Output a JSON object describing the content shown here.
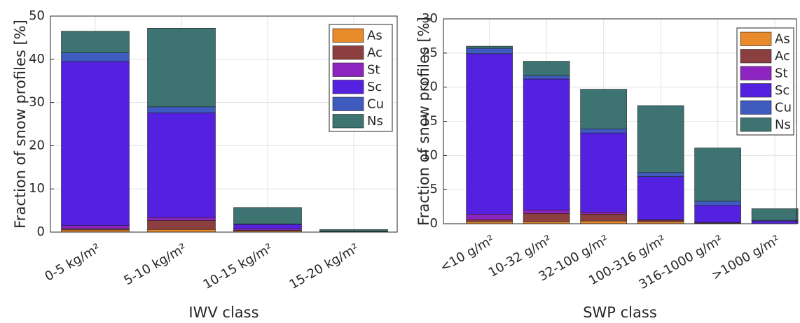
{
  "chart_data": [
    {
      "type": "stacked-bar",
      "x_label": "IWV class",
      "y_label": "Fraction of snow profiles [%]",
      "categories": [
        "0-5 kg/m²",
        "5-10 kg/m²",
        "10-15 kg/m²",
        "15-20 kg/m²"
      ],
      "series": [
        {
          "name": "As",
          "color": "#e8892a",
          "values": [
            0.5,
            0.6,
            0.3,
            0.1
          ]
        },
        {
          "name": "Ac",
          "color": "#8b3f3f",
          "values": [
            0.3,
            2.1,
            0.1,
            0
          ]
        },
        {
          "name": "St",
          "color": "#8e24c0",
          "values": [
            0.7,
            0.7,
            0.4,
            0
          ]
        },
        {
          "name": "Sc",
          "color": "#5521e0",
          "values": [
            38,
            24.2,
            1.0,
            0.1
          ]
        },
        {
          "name": "Cu",
          "color": "#3f5bbf",
          "values": [
            2,
            1.4,
            0.1,
            0
          ]
        },
        {
          "name": "Ns",
          "color": "#3d7370",
          "values": [
            5,
            18.2,
            3.8,
            0.4
          ]
        }
      ],
      "ylim": [
        0,
        50
      ],
      "yticks": [
        0,
        10,
        20,
        30,
        40,
        50
      ],
      "grid": true,
      "legend": "upper right"
    },
    {
      "type": "stacked-bar",
      "x_label": "SWP class",
      "y_label": "Fraction of snow profiles [%]",
      "categories": [
        "<10 g/m²",
        "10-32 g/m²",
        "32-100 g/m²",
        "100-316 g/m²",
        "316-1000 g/m²",
        ">1000 g/m²"
      ],
      "series": [
        {
          "name": "As",
          "color": "#e8892a",
          "values": [
            0.3,
            0.3,
            0.4,
            0.3,
            0.1,
            0
          ]
        },
        {
          "name": "Ac",
          "color": "#8b3f3f",
          "values": [
            0.3,
            1.2,
            1.0,
            0.2,
            0,
            0
          ]
        },
        {
          "name": "St",
          "color": "#8e24c0",
          "values": [
            0.8,
            0.5,
            0.3,
            0.1,
            0.1,
            0
          ]
        },
        {
          "name": "Sc",
          "color": "#5521e0",
          "values": [
            23.5,
            19.2,
            11.6,
            6.3,
            2.5,
            0.4
          ]
        },
        {
          "name": "Cu",
          "color": "#3f5bbf",
          "values": [
            0.8,
            0.5,
            0.6,
            0.6,
            0.6,
            0.1
          ]
        },
        {
          "name": "Ns",
          "color": "#3d7370",
          "values": [
            0.3,
            2.1,
            5.8,
            9.8,
            7.8,
            1.7
          ]
        }
      ],
      "ylim": [
        0,
        30
      ],
      "yticks": [
        0,
        5,
        10,
        15,
        20,
        25,
        30
      ],
      "grid": true,
      "legend": "upper right"
    }
  ]
}
